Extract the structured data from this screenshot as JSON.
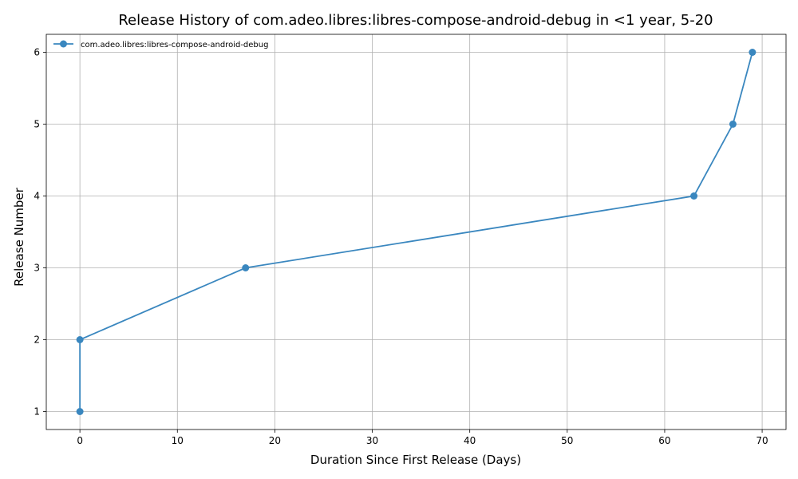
{
  "chart_data": {
    "type": "line",
    "title": "Release History of com.adeo.libres:libres-compose-android-debug in <1 year, 5-20",
    "xlabel": "Duration Since First Release (Days)",
    "ylabel": "Release Number",
    "xlim": [
      -3.45,
      72.45
    ],
    "ylim": [
      0.75,
      6.25
    ],
    "xticks": [
      0,
      10,
      20,
      30,
      40,
      50,
      60,
      70
    ],
    "yticks": [
      1,
      2,
      3,
      4,
      5,
      6
    ],
    "grid": true,
    "legend_position": "top-left",
    "series": [
      {
        "name": "com.adeo.libres:libres-compose-android-debug",
        "color": "#3a87bf",
        "marker": "circle",
        "x": [
          0,
          0,
          17,
          63,
          67,
          69
        ],
        "y": [
          1,
          2,
          3,
          4,
          5,
          6
        ]
      }
    ]
  }
}
